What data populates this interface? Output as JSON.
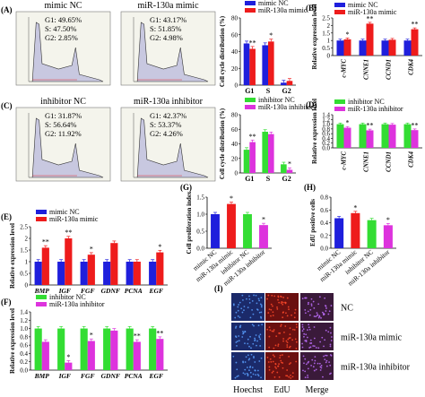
{
  "flow_panels": [
    {
      "label": "(A)",
      "name": "mimic NC",
      "g1": "G1: 49.65%",
      "s": "S: 47.50%",
      "g2": "G2: 2.85%"
    },
    {
      "label": "",
      "name": "miR-130a mimic",
      "g1": "G1: 43.17%",
      "s": "S: 51.85%",
      "g2": "G2: 4.98%"
    },
    {
      "label": "(C)",
      "name": "inhibitor NC",
      "g1": "G1: 31.87%",
      "s": "S: 56.64%",
      "g2": "G2: 11.92%"
    },
    {
      "label": "",
      "name": "miR-130a inhibitor",
      "g1": "G1: 42.37%",
      "s": "S: 53.37%",
      "g2": "G2: 4.26%"
    }
  ],
  "colors": {
    "blue": "#1f1fdc",
    "red": "#ee1c1c",
    "green": "#33dd33",
    "magenta": "#dd33dd",
    "panel_bg": "#f4f4ec"
  },
  "chart_data": [
    {
      "id": "A",
      "type": "bar",
      "ylabel": "Cell cycle distribution (%)",
      "categories": [
        "G1",
        "S",
        "G2"
      ],
      "ylim": [
        0,
        80
      ],
      "yticks": [
        0,
        20,
        40,
        60,
        80
      ],
      "legend": "top",
      "series": [
        {
          "name": "mimic NC",
          "color": "#1f1fdc",
          "values": [
            49.6,
            47.5,
            2.9
          ],
          "sig": [
            "",
            "",
            ""
          ]
        },
        {
          "name": "miR-130a mimic",
          "color": "#ee1c1c",
          "values": [
            43.2,
            51.9,
            5.0
          ],
          "sig": [
            "**",
            "*",
            ""
          ]
        }
      ]
    },
    {
      "id": "B",
      "label": "(B)",
      "type": "bar",
      "ylabel": "Relative expression level",
      "categories": [
        "c-MYC",
        "CNNE1",
        "CCND1",
        "CDK4"
      ],
      "ylim": [
        0,
        2.5
      ],
      "yticks": [
        0,
        0.5,
        1.0,
        1.5,
        2.0,
        2.5
      ],
      "legend": "top-left",
      "series": [
        {
          "name": "mimic NC",
          "color": "#1f1fdc",
          "values": [
            1.0,
            1.0,
            1.0,
            1.0
          ],
          "sig": [
            "",
            "",
            "",
            ""
          ]
        },
        {
          "name": "miR-130a mimic",
          "color": "#ee1c1c",
          "values": [
            1.08,
            2.12,
            1.05,
            1.75
          ],
          "sig": [
            "*",
            "**",
            "",
            "**"
          ]
        }
      ]
    },
    {
      "id": "C",
      "type": "bar",
      "ylabel": "Cell cycle distribution (%)",
      "categories": [
        "G1",
        "S",
        "G2"
      ],
      "ylim": [
        0,
        80
      ],
      "yticks": [
        0,
        20,
        40,
        60,
        80
      ],
      "legend": "top",
      "series": [
        {
          "name": "inhibitor NC",
          "color": "#33dd33",
          "values": [
            31.9,
            56.6,
            11.9
          ],
          "sig": [
            "",
            "",
            ""
          ]
        },
        {
          "name": "miR-130a inhibitor",
          "color": "#dd33dd",
          "values": [
            42.4,
            53.4,
            4.3
          ],
          "sig": [
            "**",
            "",
            "*"
          ]
        }
      ]
    },
    {
      "id": "D",
      "label": "(D)",
      "type": "bar",
      "ylabel": "Relative expression level",
      "categories": [
        "c-MYC",
        "CNNE1",
        "CCND1",
        "CDK4"
      ],
      "ylim": [
        0,
        1.4
      ],
      "yticks": [
        0,
        0.2,
        0.4,
        0.6,
        0.8,
        1.0,
        1.2,
        1.4
      ],
      "legend": "top",
      "series": [
        {
          "name": "inhibitor NC",
          "color": "#33dd33",
          "values": [
            1.0,
            1.0,
            1.0,
            1.0
          ],
          "sig": [
            "",
            "",
            "",
            ""
          ]
        },
        {
          "name": "miR-130a inhibitor",
          "color": "#dd33dd",
          "values": [
            0.85,
            0.74,
            0.98,
            0.75
          ],
          "sig": [
            "*",
            "**",
            "",
            "**"
          ]
        }
      ]
    },
    {
      "id": "E",
      "label": "(E)",
      "type": "bar",
      "ylabel": "Relative expression level",
      "categories": [
        "BMP",
        "IGF",
        "FGF",
        "GDNF",
        "PCNA",
        "EGF"
      ],
      "ylim": [
        0,
        2.5
      ],
      "yticks": [
        0,
        0.5,
        1.0,
        1.5,
        2.0,
        2.5
      ],
      "legend": "top-left",
      "series": [
        {
          "name": "mimic NC",
          "color": "#1f1fdc",
          "values": [
            1.0,
            1.0,
            1.0,
            1.0,
            1.0,
            1.0
          ],
          "sig": [
            "",
            "",
            "",
            "",
            "",
            ""
          ]
        },
        {
          "name": "miR-130a mimic",
          "color": "#ee1c1c",
          "values": [
            1.6,
            2.0,
            1.3,
            1.8,
            1.0,
            1.4
          ],
          "sig": [
            "**",
            "**",
            "*",
            "",
            "",
            "*"
          ]
        }
      ]
    },
    {
      "id": "F",
      "label": "(F)",
      "type": "bar",
      "ylabel": "Relative expression level",
      "categories": [
        "BMP",
        "IGF",
        "FGF",
        "GDNF",
        "PCNA",
        "EGF"
      ],
      "ylim": [
        0,
        1.4
      ],
      "yticks": [
        0,
        0.2,
        0.4,
        0.6,
        0.8,
        1.0,
        1.2,
        1.4
      ],
      "legend": "top-left",
      "series": [
        {
          "name": "inhibitor NC",
          "color": "#33dd33",
          "values": [
            1.0,
            1.0,
            1.0,
            1.0,
            1.0,
            1.0
          ],
          "sig": [
            "",
            "",
            "",
            "",
            "",
            ""
          ]
        },
        {
          "name": "miR-130a inhibitor",
          "color": "#dd33dd",
          "values": [
            0.68,
            0.18,
            0.7,
            0.95,
            0.68,
            0.75
          ],
          "sig": [
            "",
            "*",
            "*",
            "",
            "**",
            "**"
          ]
        }
      ]
    },
    {
      "id": "G",
      "label": "(G)",
      "type": "bar",
      "ylabel": "Cell proliferation index",
      "categories": [
        "mimic NC",
        "miR-130a mimic",
        "inhibitor NC",
        "miR-130a inhibitor"
      ],
      "ylim": [
        0,
        1.5
      ],
      "yticks": [
        0,
        0.5,
        1.0,
        1.5
      ],
      "series": [
        {
          "name": "",
          "colors": [
            "#1f1fdc",
            "#ee1c1c",
            "#33dd33",
            "#dd33dd"
          ],
          "values": [
            1.0,
            1.3,
            1.0,
            0.68
          ],
          "sig": [
            "",
            "*",
            "",
            "*"
          ]
        }
      ]
    },
    {
      "id": "H",
      "label": "(H)",
      "type": "bar",
      "ylabel": "EdU positive cells",
      "categories": [
        "mimic NC",
        "miR-130a mimic",
        "inhibitor NC",
        "miR-130a inhibitor"
      ],
      "ylim": [
        0,
        0.8
      ],
      "yticks": [
        0,
        0.2,
        0.4,
        0.6,
        0.8
      ],
      "series": [
        {
          "name": "",
          "colors": [
            "#1f1fdc",
            "#ee1c1c",
            "#33dd33",
            "#dd33dd"
          ],
          "values": [
            0.47,
            0.55,
            0.44,
            0.36
          ],
          "sig": [
            "",
            "*",
            "",
            "*"
          ]
        }
      ]
    }
  ],
  "panel_I": {
    "label": "(I)",
    "rows": [
      "NC",
      "miR-130a mimic",
      "miR-130a inhibitor"
    ],
    "columns": [
      "Hoechst",
      "EdU",
      "Merge"
    ]
  }
}
